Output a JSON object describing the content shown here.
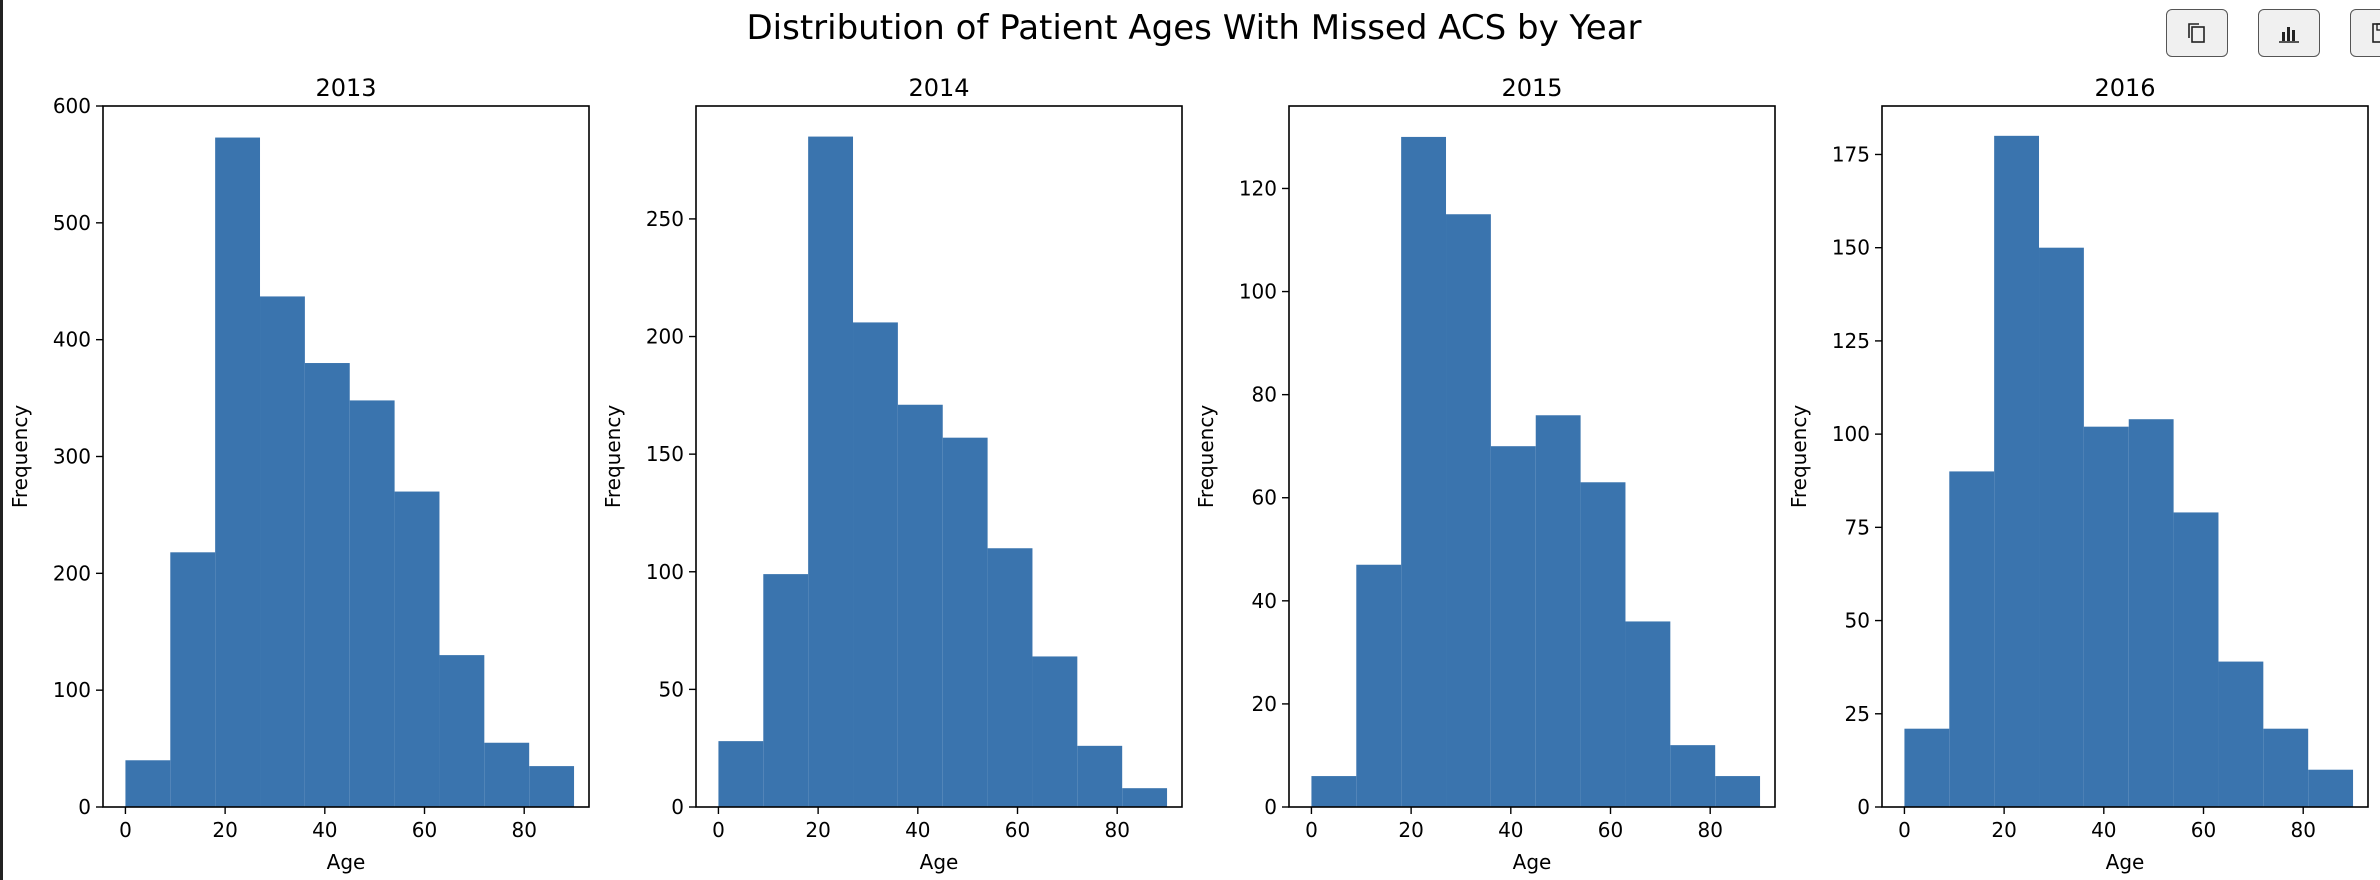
{
  "toolbar": {
    "buttons": [
      {
        "icon": "copy-icon"
      },
      {
        "icon": "bar-chart-icon"
      },
      {
        "icon": "save-icon"
      }
    ]
  },
  "colors": {
    "bar": "#3a74ae",
    "axis": "#000000",
    "text": "#000000"
  },
  "chart_data": {
    "type": "bar",
    "title": "Distribution of Patient Ages With Missed ACS by Year",
    "xlabel": "Age",
    "ylabel": "Frequency",
    "bin_edges": [
      0,
      9,
      18,
      27,
      36,
      45,
      54,
      63,
      72,
      81,
      90
    ],
    "xlim": [
      -4.5,
      93
    ],
    "xticks": [
      0,
      20,
      40,
      60,
      80
    ],
    "subplots": [
      {
        "title": "2013",
        "values": [
          40,
          218,
          573,
          437,
          380,
          348,
          270,
          130,
          55,
          35
        ],
        "ylim": [
          0,
          600
        ],
        "yticks": [
          0,
          100,
          200,
          300,
          400,
          500,
          600
        ]
      },
      {
        "title": "2014",
        "values": [
          28,
          99,
          285,
          206,
          171,
          157,
          110,
          64,
          26,
          8
        ],
        "ylim": [
          0,
          298
        ],
        "yticks": [
          0,
          50,
          100,
          150,
          200,
          250
        ]
      },
      {
        "title": "2015",
        "values": [
          6,
          47,
          130,
          115,
          70,
          76,
          63,
          36,
          12,
          6
        ],
        "ylim": [
          0,
          136
        ],
        "yticks": [
          0,
          20,
          40,
          60,
          80,
          100,
          120
        ]
      },
      {
        "title": "2016",
        "values": [
          21,
          90,
          180,
          150,
          102,
          104,
          79,
          39,
          21,
          10
        ],
        "ylim": [
          0,
          188
        ],
        "yticks": [
          0,
          25,
          50,
          75,
          100,
          125,
          150,
          175
        ]
      }
    ]
  }
}
